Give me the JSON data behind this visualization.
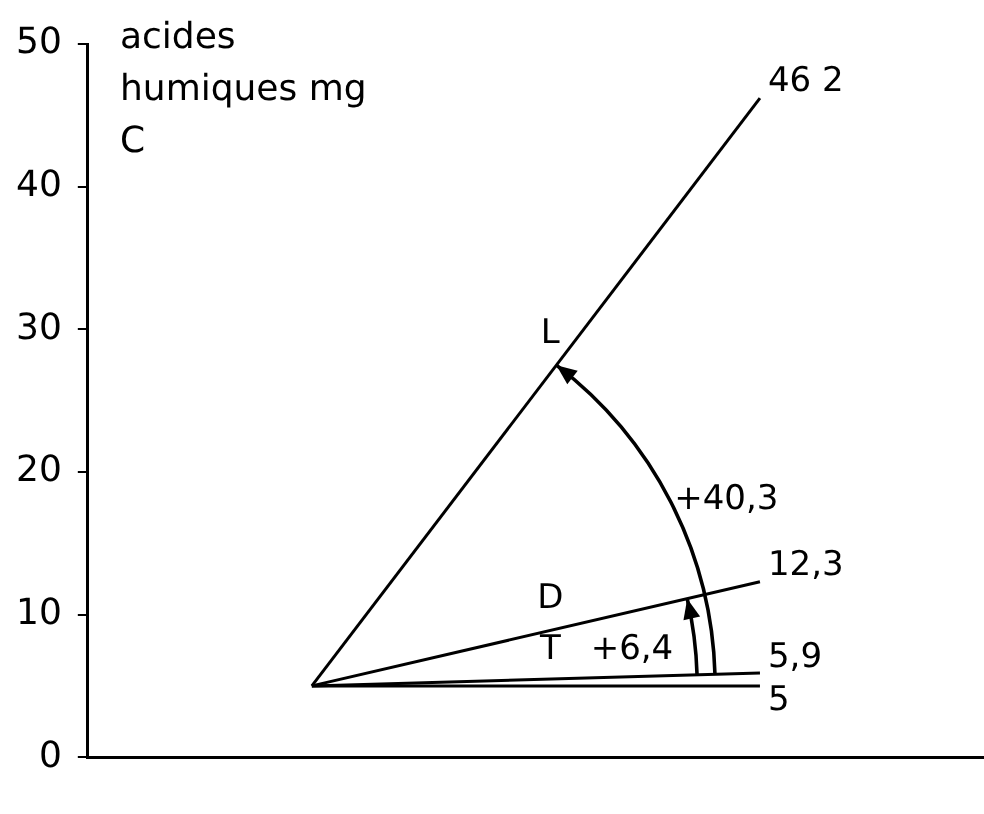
{
  "chart_data": {
    "type": "line",
    "ylabel": "acides humiques mg C",
    "categories": [
      null,
      null
    ],
    "series": [
      {
        "name": "L",
        "color": "#000000",
        "values": [
          5,
          46.2
        ],
        "value_labels": [
          null,
          "46 2"
        ]
      },
      {
        "name": "D",
        "color": "#000000",
        "values": [
          5,
          12.3
        ],
        "value_labels": [
          null,
          "12,3"
        ]
      },
      {
        "name": "T",
        "color": "#000000",
        "values": [
          5,
          5.9
        ],
        "value_labels": [
          null,
          "5,9"
        ]
      },
      {
        "color": "#000000",
        "values": [
          5,
          5
        ],
        "value_labels": [
          null,
          "5"
        ]
      }
    ],
    "annotations": [
      "+40,3",
      "+6,4"
    ],
    "ylim": [
      0,
      50
    ],
    "yticks": [
      0,
      10,
      20,
      30,
      40,
      50
    ],
    "grid": false,
    "legend": false,
    "marker": "none",
    "line_style": "solid"
  }
}
